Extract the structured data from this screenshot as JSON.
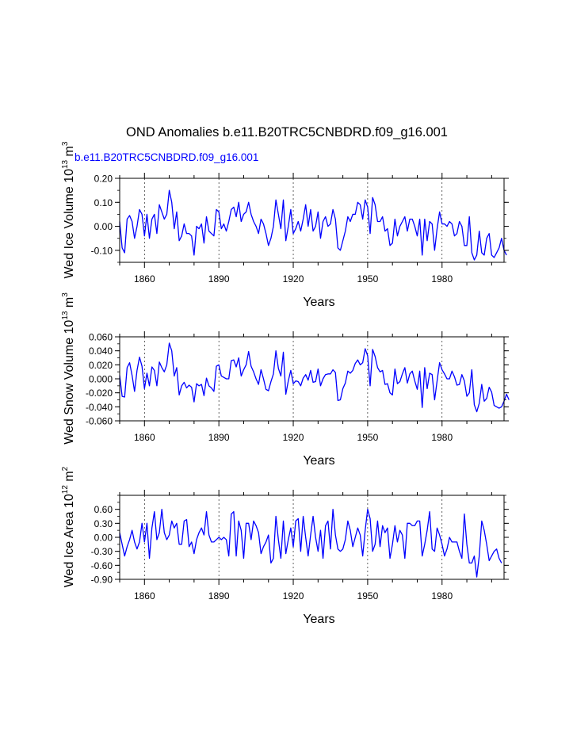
{
  "title": "OND Anomalies b.e11.B20TRC5CNBDRD.f09_g16.001",
  "case_label": "b.e11.B20TRC5CNBDRD.f09_g16.001",
  "colors": {
    "series": "#0000ff",
    "case_label": "#0000ff",
    "axes": "#000000",
    "grid": "#000000"
  },
  "chart_data": [
    {
      "type": "line",
      "name": "ice-volume",
      "ylabel_parts": {
        "base": "Wed Ice Volume 10",
        "exp1": "13",
        "unit": " m",
        "exp2": "3"
      },
      "xlabel": "Years",
      "xlim": [
        1850,
        2005
      ],
      "ylim": [
        -0.15,
        0.2
      ],
      "xticks": [
        1860,
        1890,
        1920,
        1950,
        1980
      ],
      "xtick_labels": [
        "1860",
        "1890",
        "1920",
        "1950",
        "1980"
      ],
      "yticks": [
        0.2,
        0.1,
        0.0,
        -0.1
      ],
      "ytick_labels": [
        "0.20",
        "0.10",
        "0.00",
        "-0.10"
      ],
      "vgrid": [
        1860,
        1890,
        1920,
        1950,
        1980
      ],
      "x_start": 1850,
      "values": [
        0.02,
        -0.09,
        -0.11,
        0.03,
        0.045,
        0.02,
        -0.05,
        0.0,
        0.07,
        0.05,
        -0.04,
        0.05,
        -0.05,
        0.03,
        0.05,
        -0.03,
        0.09,
        0.06,
        0.03,
        0.05,
        0.15,
        0.1,
        -0.01,
        0.06,
        -0.06,
        -0.04,
        0.01,
        -0.03,
        -0.03,
        -0.04,
        -0.12,
        0.0,
        -0.01,
        0.01,
        -0.07,
        0.04,
        -0.02,
        -0.03,
        -0.04,
        0.07,
        0.06,
        -0.01,
        0.01,
        -0.02,
        0.02,
        0.07,
        0.08,
        0.04,
        0.1,
        0.02,
        0.05,
        0.06,
        0.1,
        0.05,
        0.02,
        0.0,
        -0.03,
        0.03,
        0.01,
        -0.03,
        -0.08,
        -0.05,
        0.0,
        0.11,
        0.05,
        -0.01,
        0.11,
        -0.06,
        0.0,
        0.07,
        -0.03,
        -0.01,
        0.02,
        -0.02,
        0.03,
        0.09,
        0.0,
        0.07,
        -0.02,
        0.0,
        0.06,
        -0.05,
        0.02,
        0.04,
        0.0,
        0.01,
        0.07,
        0.03,
        -0.09,
        -0.1,
        -0.06,
        -0.02,
        0.04,
        0.02,
        0.05,
        0.05,
        0.1,
        0.09,
        0.03,
        0.11,
        0.08,
        -0.03,
        0.12,
        0.09,
        0.02,
        0.02,
        0.04,
        -0.02,
        -0.01,
        -0.08,
        -0.07,
        0.03,
        -0.04,
        0.0,
        0.02,
        0.04,
        -0.02,
        0.03,
        0.03,
        0.0,
        -0.04,
        0.03,
        -0.12,
        0.03,
        -0.06,
        0.02,
        0.01,
        -0.1,
        -0.01,
        0.06,
        0.01,
        0.01,
        0.0,
        0.02,
        0.01,
        -0.04,
        -0.03,
        0.02,
        0.0,
        -0.08,
        -0.08,
        0.04,
        -0.11,
        -0.14,
        -0.12,
        -0.02,
        -0.11,
        -0.12,
        -0.05,
        -0.03,
        -0.12,
        -0.13,
        -0.11,
        -0.09,
        -0.05,
        -0.1,
        -0.12
      ]
    },
    {
      "type": "line",
      "name": "snow-volume",
      "ylabel_parts": {
        "base": "Wed Snow Volume 10",
        "exp1": "13",
        "unit": " m",
        "exp2": "3"
      },
      "xlabel": "Years",
      "xlim": [
        1850,
        2005
      ],
      "ylim": [
        -0.06,
        0.06
      ],
      "xticks": [
        1860,
        1890,
        1920,
        1950,
        1980
      ],
      "xtick_labels": [
        "1860",
        "1890",
        "1920",
        "1950",
        "1980"
      ],
      "yticks": [
        0.06,
        0.04,
        0.02,
        0.0,
        -0.02,
        -0.04,
        -0.06
      ],
      "ytick_labels": [
        "0.060",
        "0.040",
        "0.020",
        "0.000",
        "-0.020",
        "-0.040",
        "-0.060"
      ],
      "vgrid": [
        1860,
        1890,
        1920,
        1950,
        1980
      ],
      "x_start": 1850,
      "values": [
        0.005,
        -0.025,
        -0.026,
        0.016,
        0.023,
        0.005,
        -0.018,
        0.012,
        0.031,
        0.018,
        -0.014,
        0.008,
        -0.01,
        0.017,
        0.012,
        -0.01,
        0.024,
        0.016,
        0.01,
        0.02,
        0.051,
        0.04,
        0.004,
        0.016,
        -0.023,
        -0.01,
        -0.005,
        -0.013,
        -0.009,
        -0.012,
        -0.033,
        -0.007,
        -0.01,
        -0.008,
        -0.024,
        0.001,
        -0.01,
        -0.013,
        -0.018,
        0.018,
        0.02,
        0.004,
        0.002,
        0.0,
        0.0,
        0.026,
        0.027,
        0.017,
        0.03,
        0.004,
        0.013,
        0.02,
        0.039,
        0.018,
        0.01,
        0.0,
        -0.008,
        0.013,
        0.0,
        -0.015,
        -0.017,
        -0.004,
        0.007,
        0.04,
        0.015,
        0.004,
        0.038,
        -0.022,
        -0.003,
        0.012,
        -0.007,
        -0.003,
        -0.004,
        -0.01,
        0.001,
        0.006,
        -0.002,
        0.012,
        -0.005,
        -0.004,
        0.014,
        -0.01,
        0.0,
        0.006,
        0.007,
        0.007,
        0.013,
        0.009,
        -0.031,
        -0.03,
        -0.014,
        -0.006,
        0.011,
        0.008,
        0.012,
        0.022,
        0.027,
        0.02,
        0.023,
        0.043,
        0.033,
        -0.01,
        0.042,
        0.032,
        0.016,
        0.01,
        0.012,
        -0.008,
        -0.007,
        -0.02,
        -0.023,
        0.014,
        -0.007,
        -0.004,
        0.007,
        0.016,
        -0.006,
        0.007,
        0.011,
        -0.003,
        -0.015,
        0.011,
        -0.041,
        0.016,
        -0.014,
        0.008,
        0.006,
        -0.03,
        -0.003,
        0.023,
        0.013,
        0.007,
        0.0,
        0.0,
        0.011,
        0.003,
        -0.009,
        -0.008,
        0.006,
        -0.003,
        -0.025,
        -0.02,
        0.013,
        -0.037,
        -0.047,
        -0.035,
        -0.008,
        -0.032,
        -0.028,
        -0.012,
        -0.019,
        -0.038,
        -0.04,
        -0.042,
        -0.04,
        -0.032,
        -0.022,
        -0.03
      ]
    },
    {
      "type": "line",
      "name": "ice-area",
      "ylabel_parts": {
        "base": "Wed Ice Area 10",
        "exp1": "12",
        "unit": " m",
        "exp2": "2"
      },
      "xlabel": "Years",
      "xlim": [
        1850,
        2005
      ],
      "ylim": [
        -0.9,
        0.9
      ],
      "xticks": [
        1860,
        1890,
        1920,
        1950,
        1980
      ],
      "xtick_labels": [
        "1860",
        "1890",
        "1920",
        "1950",
        "1980"
      ],
      "yticks": [
        0.6,
        0.3,
        0.0,
        -0.3,
        -0.6,
        -0.9
      ],
      "ytick_labels": [
        "0.60",
        "0.30",
        "0.00",
        "-0.30",
        "-0.60",
        "-0.90"
      ],
      "vgrid": [
        1860,
        1890,
        1920,
        1950,
        1980
      ],
      "x_start": 1850,
      "values": [
        0.1,
        -0.15,
        -0.4,
        -0.2,
        -0.05,
        0.15,
        -0.1,
        -0.25,
        -0.1,
        0.3,
        -0.1,
        0.3,
        -0.45,
        0.2,
        0.55,
        -0.05,
        0.1,
        0.6,
        0.1,
        -0.05,
        0.05,
        0.35,
        0.2,
        0.3,
        -0.15,
        -0.15,
        0.35,
        0.38,
        -0.2,
        -0.1,
        -0.35,
        -0.05,
        0.1,
        0.2,
        0.05,
        0.55,
        0.05,
        -0.1,
        -0.1,
        -0.05,
        0.0,
        -0.05,
        0.0,
        -0.05,
        -0.4,
        0.5,
        0.55,
        -0.4,
        0.35,
        0.15,
        -0.45,
        0.3,
        0.3,
        -0.05,
        0.35,
        0.25,
        0.1,
        -0.35,
        -0.2,
        -0.1,
        0.05,
        -0.55,
        -0.45,
        0.45,
        -0.05,
        -0.45,
        0.35,
        -0.35,
        -0.05,
        0.2,
        -0.2,
        0.35,
        0.4,
        -0.3,
        0.45,
        0.0,
        -0.4,
        0.05,
        0.45,
        0.0,
        -0.3,
        0.15,
        -0.45,
        0.25,
        0.35,
        -0.25,
        0.6,
        0.05,
        -0.25,
        -0.3,
        -0.25,
        -0.05,
        0.35,
        0.15,
        -0.2,
        0.0,
        0.2,
        0.05,
        -0.4,
        0.15,
        0.6,
        0.4,
        -0.3,
        -0.15,
        0.35,
        -0.2,
        0.25,
        0.1,
        0.2,
        -0.45,
        -0.15,
        0.25,
        -0.1,
        0.15,
        0.05,
        -0.45,
        0.3,
        0.3,
        0.25,
        0.25,
        0.35,
        0.35,
        -0.4,
        -0.15,
        0.15,
        0.55,
        -0.25,
        -0.3,
        0.2,
        0.05,
        -0.15,
        -0.4,
        -0.25,
        0.0,
        -0.1,
        -0.1,
        -0.1,
        -0.3,
        -0.45,
        0.5,
        -0.15,
        -0.55,
        -0.55,
        -0.4,
        -0.85,
        -0.4,
        0.35,
        0.15,
        -0.15,
        -0.5,
        -0.4,
        -0.3,
        -0.25,
        -0.45,
        -0.55
      ]
    }
  ]
}
